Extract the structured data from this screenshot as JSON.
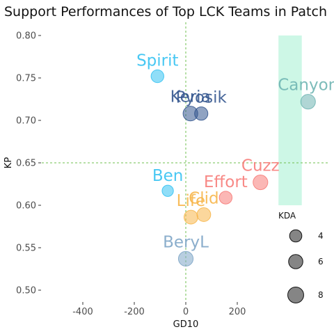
{
  "chart_data": {
    "type": "scatter",
    "title": "Support Performances of Top LCK Teams in Patch",
    "xlabel": "GD10",
    "ylabel": "KP",
    "xlim": [
      -470,
      470
    ],
    "ylim": [
      0.48,
      0.81
    ],
    "x_ticks": [
      -400,
      -200,
      0,
      200
    ],
    "y_ticks": [
      0.5,
      0.55,
      0.6,
      0.65,
      0.7,
      0.75,
      0.8
    ],
    "reference_lines": {
      "x": 0,
      "y": 0.65,
      "color": "#6fbf4f"
    },
    "highlight_region": {
      "x": [
        360,
        510
      ],
      "y": [
        0.6,
        0.8
      ],
      "color": "#cdf7e6"
    },
    "grid": false,
    "legend": {
      "title": "KDA",
      "position": "right",
      "entries": [
        {
          "label": "4",
          "kda": 4
        },
        {
          "label": "6",
          "kda": 6
        },
        {
          "label": "8",
          "kda": 8
        }
      ]
    },
    "points": [
      {
        "name": "Spirit",
        "x": -110,
        "y": 0.752,
        "kda": 4.5,
        "color": "#35c2f2"
      },
      {
        "name": "Keria",
        "x": 18,
        "y": 0.708,
        "kda": 6.5,
        "color": "#34578f"
      },
      {
        "name": "Pyosik",
        "x": 60,
        "y": 0.708,
        "kda": 5.0,
        "color": "#34578f"
      },
      {
        "name": "Canyon",
        "x": 475,
        "y": 0.722,
        "kda": 6.5,
        "color": "#6fb5b3"
      },
      {
        "name": "Cuzz",
        "x": 290,
        "y": 0.627,
        "kda": 6.5,
        "color": "#f77c79"
      },
      {
        "name": "Effort",
        "x": 155,
        "y": 0.609,
        "kda": 4.5,
        "color": "#f77c79"
      },
      {
        "name": "Ben",
        "x": -70,
        "y": 0.617,
        "kda": 3.2,
        "color": "#35c2f2"
      },
      {
        "name": "Life",
        "x": 20,
        "y": 0.586,
        "kda": 5.5,
        "color": "#f7b64a"
      },
      {
        "name": "Clid",
        "x": 70,
        "y": 0.589,
        "kda": 5.5,
        "color": "#f7b64a"
      },
      {
        "name": "BeryL",
        "x": 0,
        "y": 0.537,
        "kda": 6.5,
        "color": "#7ea5c6"
      }
    ]
  }
}
